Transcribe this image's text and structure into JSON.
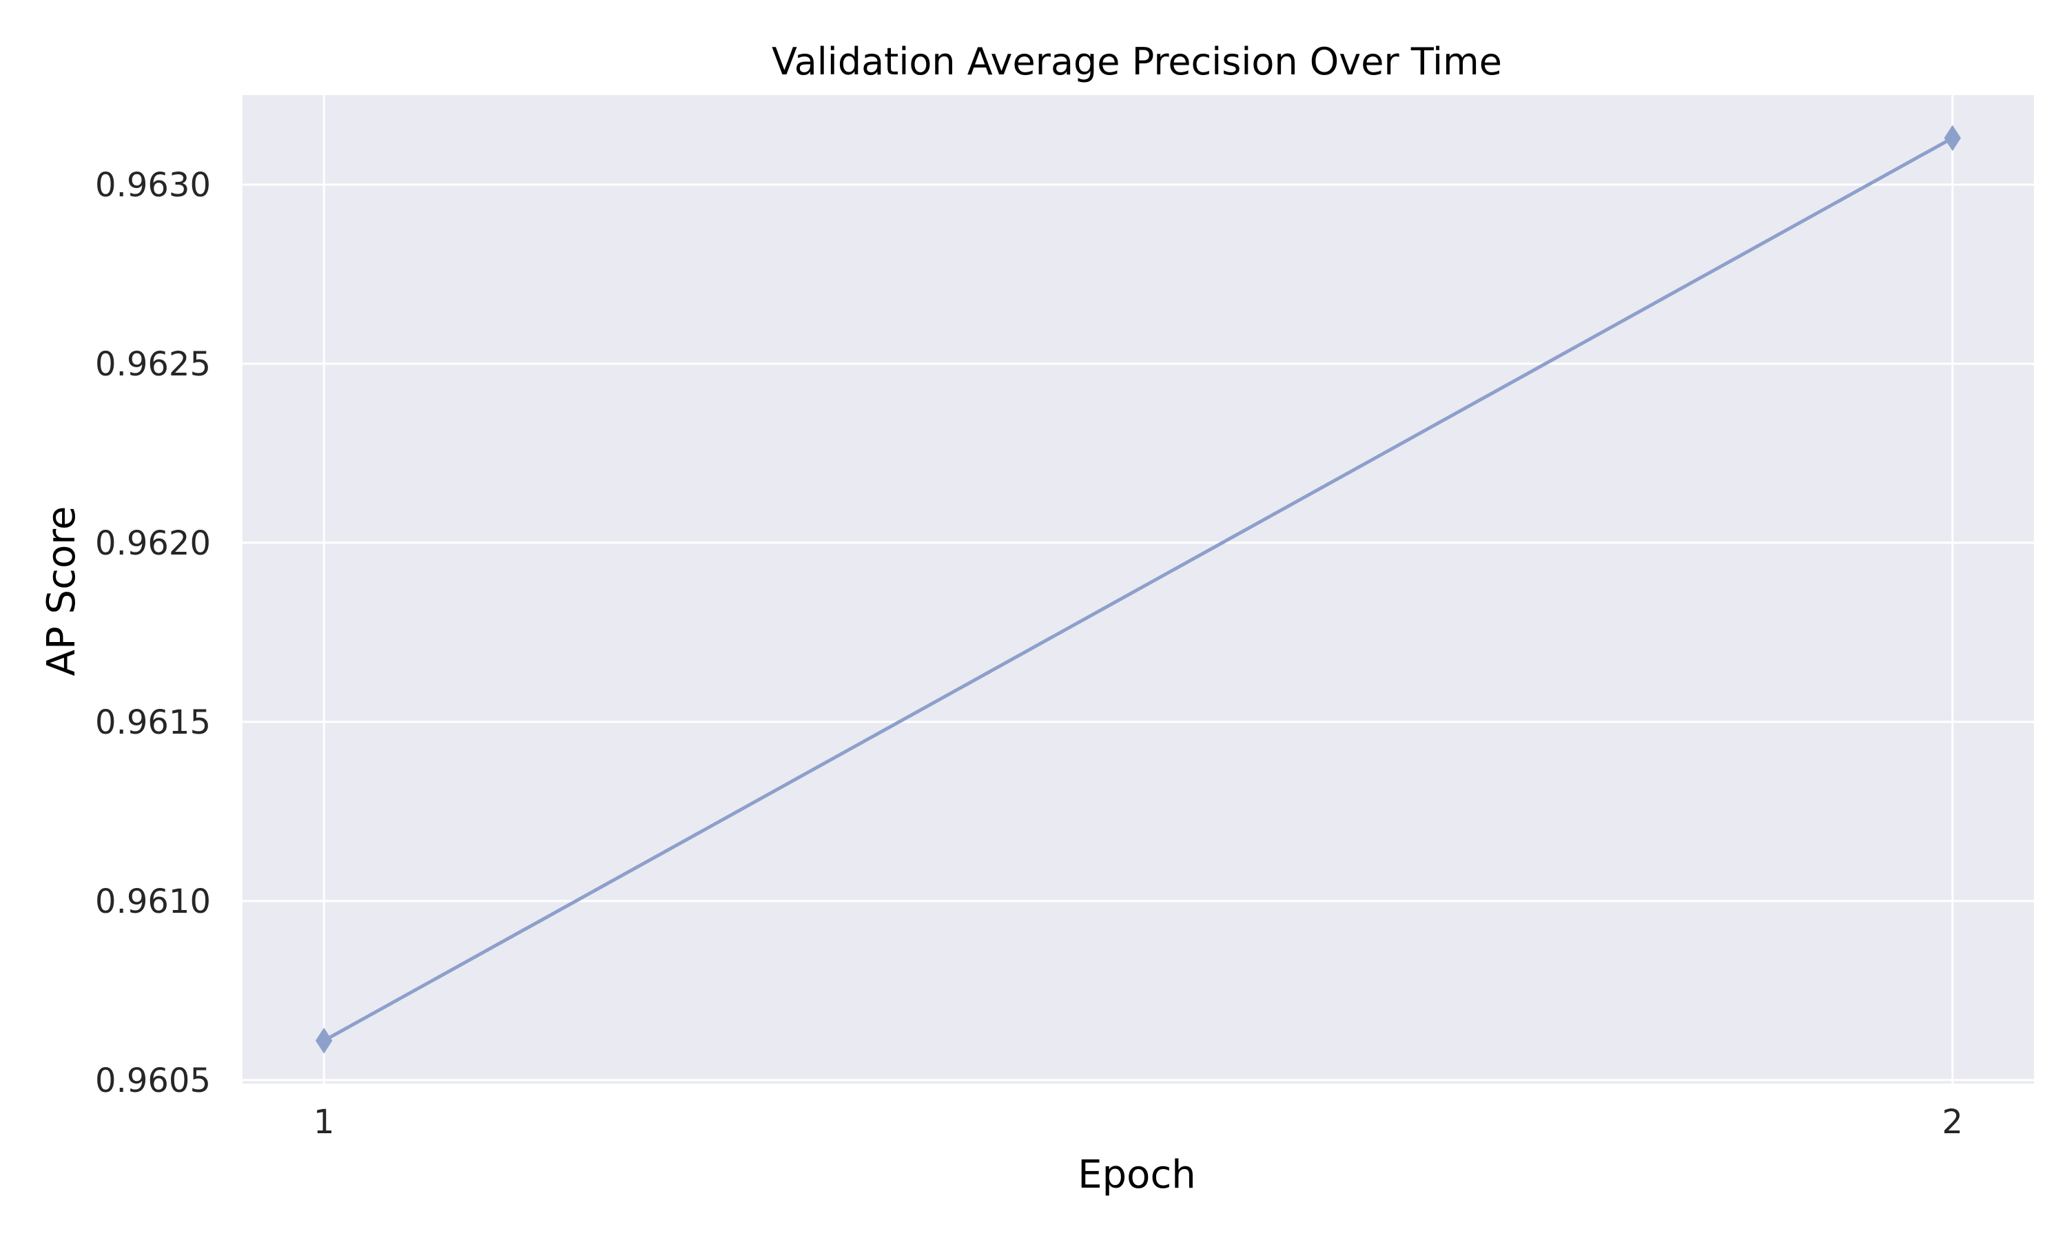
{
  "chart_data": {
    "type": "line",
    "title": "Validation Average Precision Over Time",
    "xlabel": "Epoch",
    "ylabel": "AP Score",
    "x": [
      1,
      2
    ],
    "x_ticks": [
      "1",
      "2"
    ],
    "y_ticks": [
      "0.9605",
      "0.9610",
      "0.9615",
      "0.9620",
      "0.9625",
      "0.9630"
    ],
    "y_tick_values": [
      0.9605,
      0.961,
      0.9615,
      0.962,
      0.9625,
      0.963
    ],
    "xlim": [
      0.95,
      2.05
    ],
    "ylim": [
      0.96049,
      0.96325
    ],
    "grid": true,
    "marker": "diamond",
    "series": [
      {
        "values": [
          0.96061,
          0.96313
        ]
      }
    ],
    "colors": {
      "line": "#8da0cb",
      "plot_bg": "#eaeaf2",
      "grid": "#ffffff",
      "text": "#262626"
    }
  }
}
